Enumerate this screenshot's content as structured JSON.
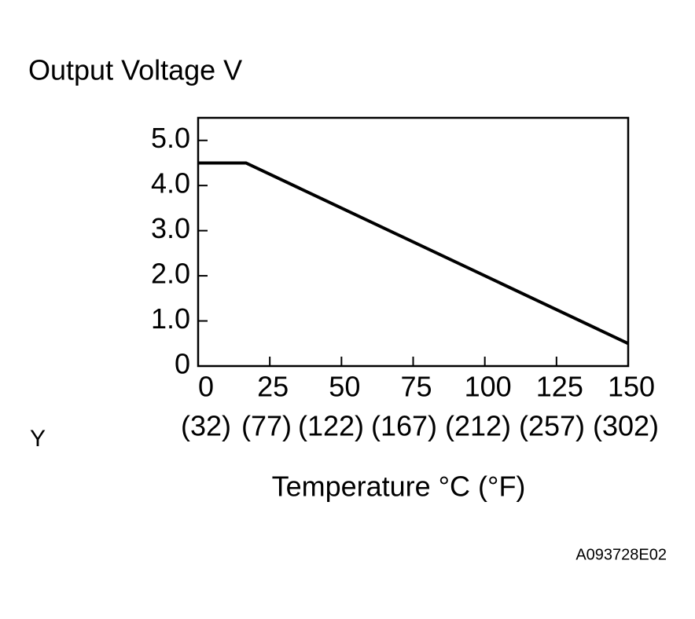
{
  "chart_data": {
    "type": "line",
    "y_label": "Output Voltage V",
    "x_label": "Temperature °C (°F)",
    "side_label": "Y",
    "figure_id": "A093728E02",
    "x": [
      0,
      16.7,
      150
    ],
    "values": [
      4.5,
      4.5,
      0.5
    ],
    "color": "#000000",
    "xlim": [
      0,
      150
    ],
    "xticks": [
      0,
      25,
      50,
      75,
      100,
      125,
      150
    ],
    "x_secondary_labels": [
      "(32)",
      "(77)",
      "(122)",
      "(167)",
      "(212)",
      "(257)",
      "(302)"
    ],
    "ylim": [
      0,
      5.5
    ],
    "yticks": [
      0,
      {
        "value": 1,
        "label": "1.0"
      },
      {
        "value": 2,
        "label": "2.0"
      },
      {
        "value": 3,
        "label": "3.0"
      },
      {
        "value": 4,
        "label": "4.0"
      },
      {
        "value": 5,
        "label": "5.0"
      }
    ]
  }
}
